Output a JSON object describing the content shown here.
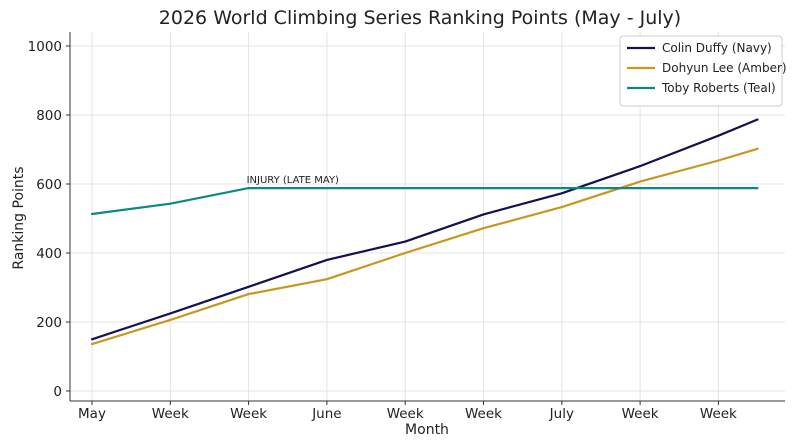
{
  "chart_data": {
    "type": "line",
    "title": "2026 World Climbing Series Ranking Points (May - July)",
    "xlabel": "Month",
    "ylabel": "Ranking Points",
    "categories": [
      "May",
      "Week",
      "Week",
      "June",
      "Week",
      "Week",
      "July",
      "Week",
      "Week"
    ],
    "ylim": [
      0,
      1000
    ],
    "yticks": [
      0,
      200,
      400,
      600,
      800,
      1000
    ],
    "grid": true,
    "legend_position": "top-right",
    "series": [
      {
        "name": "Colin Duffy (Navy)",
        "color": "#14124e",
        "x": [
          0,
          1,
          2,
          3,
          4,
          5,
          6,
          7,
          8,
          8.5
        ],
        "values": [
          150,
          225,
          302,
          380,
          433,
          512,
          573,
          652,
          740,
          787
        ]
      },
      {
        "name": "Dohyun Lee (Amber)",
        "color": "#c9961e",
        "x": [
          0,
          1,
          2,
          3,
          4,
          5,
          6,
          7,
          8,
          8.5
        ],
        "values": [
          136,
          206,
          281,
          324,
          400,
          472,
          533,
          607,
          668,
          702
        ]
      },
      {
        "name": "Toby Roberts (Teal)",
        "color": "#0a8a82",
        "x": [
          0,
          1,
          2,
          3,
          4,
          5,
          6,
          7,
          8,
          8.5
        ],
        "values": [
          513,
          543,
          588,
          588,
          588,
          588,
          588,
          588,
          588,
          588
        ]
      }
    ],
    "annotations": [
      {
        "text": "INJURY (LATE MAY)",
        "x": 2,
        "y": 588
      }
    ]
  }
}
